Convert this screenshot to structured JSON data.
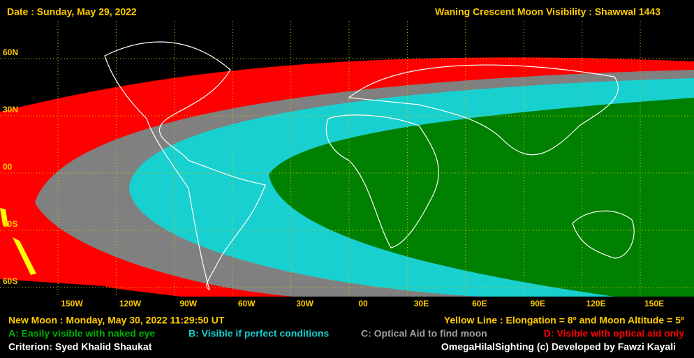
{
  "header": {
    "date": "Date : Sunday, May 29, 2022",
    "title": "Waning Crescent Moon Visibility : Shawwal 1443"
  },
  "map": {
    "lat_labels": [
      "60N",
      "30N",
      "00",
      "30S",
      "60S"
    ],
    "lon_labels": [
      "150W",
      "120W",
      "90W",
      "60W",
      "30W",
      "00",
      "30E",
      "60E",
      "90E",
      "120E",
      "150E"
    ]
  },
  "footer": {
    "new_moon": "New Moon : Monday, May 30, 2022  11:29:50  UT",
    "yellow_line": "Yellow Line : Elongation = 8º  and Moon Altitude = 5º",
    "criterion": "Criterion: Syed Khalid Shaukat",
    "credit": "OmegaHilalSighting  (c)  Developed by Fawzi Kayali"
  },
  "legend": {
    "a": "A: Easily visible with naked eye",
    "b": "B: Visible if perfect conditions",
    "c": "C: Optical Aid to find moon",
    "d": "D: Visible with optical aid only"
  }
}
